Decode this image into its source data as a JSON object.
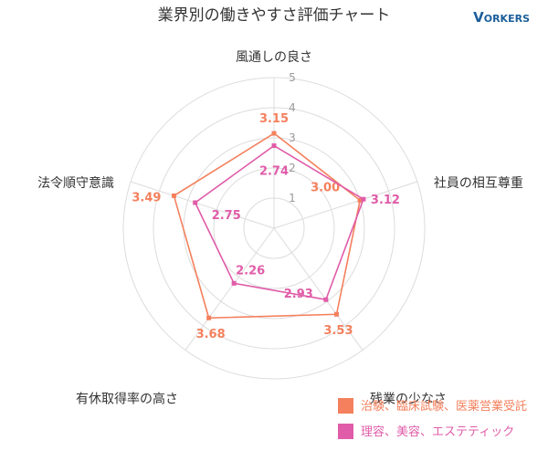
{
  "header": {
    "title": "業界別の働きやすさ評価チャート",
    "logo": "VORKERS"
  },
  "chart_data": {
    "type": "radar",
    "title": "業界別の働きやすさ評価チャート",
    "axes": [
      "風通しの良さ",
      "社員の相互尊重",
      "残業の少なさ",
      "有休取得率の高さ",
      "法令順守意識"
    ],
    "ticks": [
      "1",
      "2",
      "3",
      "4",
      "5"
    ],
    "rlim": [
      0,
      5
    ],
    "grid": true,
    "legend": "bottom-right",
    "series": [
      {
        "name": "治験、臨床試験、医薬営業受託",
        "values": [
          3.15,
          3.0,
          3.53,
          3.68,
          3.49
        ],
        "labels": [
          "3.15",
          "3.00",
          "3.53",
          "3.68",
          "3.49"
        ],
        "color": "#f4805d"
      },
      {
        "name": "理容、美容、エステティック",
        "values": [
          2.74,
          3.12,
          2.93,
          2.26,
          2.75
        ],
        "labels": [
          "2.74",
          "3.12",
          "2.93",
          "2.26",
          "2.75"
        ],
        "color": "#e05ca8"
      }
    ]
  }
}
